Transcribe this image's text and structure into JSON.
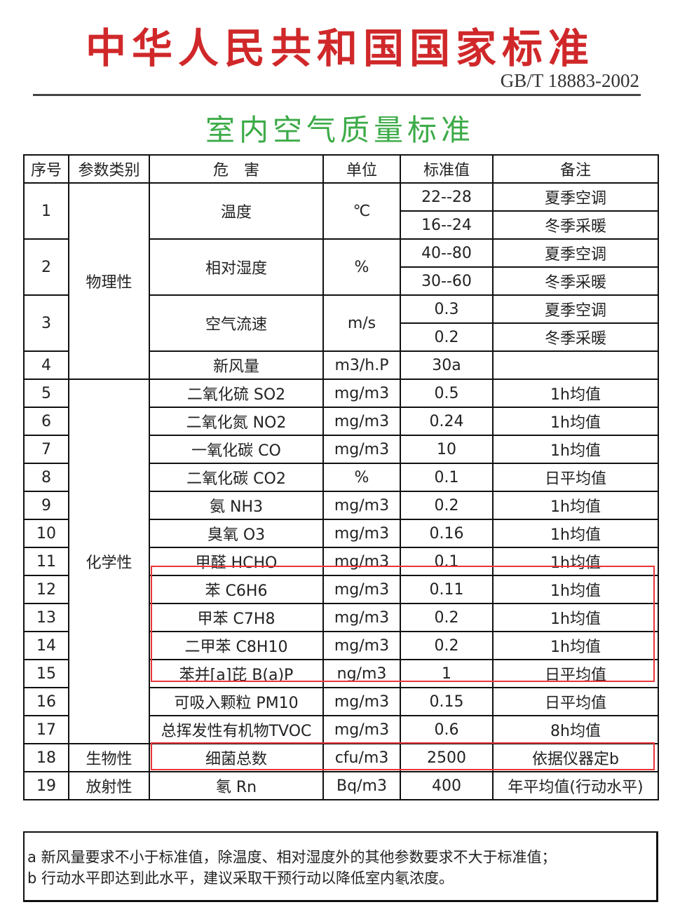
{
  "header": {
    "title": "中华人民共和国国家标准",
    "code": "GB/T 18883-2002",
    "subtitle": "室内空气质量标准"
  },
  "table": {
    "columns": [
      "序号",
      "参数类别",
      "危　害",
      "单位",
      "标准值",
      "备注"
    ],
    "categories": [
      {
        "label": "物理性",
        "from": 1,
        "to": 4
      },
      {
        "label": "化学性",
        "from": 5,
        "to": 17
      },
      {
        "label": "生物性",
        "from": 18,
        "to": 18
      },
      {
        "label": "放射性",
        "from": 19,
        "to": 19
      }
    ],
    "rows": [
      {
        "no": "1",
        "param": "温度",
        "unit": "℃",
        "values": [
          [
            "22--28",
            "夏季空调"
          ],
          [
            "16--24",
            "冬季采暖"
          ]
        ]
      },
      {
        "no": "2",
        "param": "相对湿度",
        "unit": "%",
        "values": [
          [
            "40--80",
            "夏季空调"
          ],
          [
            "30--60",
            "冬季采暖"
          ]
        ]
      },
      {
        "no": "3",
        "param": "空气流速",
        "unit": "m/s",
        "values": [
          [
            "0.3",
            "夏季空调"
          ],
          [
            "0.2",
            "冬季采暖"
          ]
        ]
      },
      {
        "no": "4",
        "param": "新风量",
        "unit": "m3/h.P",
        "values": [
          [
            "30a",
            ""
          ]
        ]
      },
      {
        "no": "5",
        "param": "二氧化硫 SO2",
        "unit": "mg/m3",
        "values": [
          [
            "0.5",
            "1h均值"
          ]
        ]
      },
      {
        "no": "6",
        "param": "二氧化氮 NO2",
        "unit": "mg/m3",
        "values": [
          [
            "0.24",
            "1h均值"
          ]
        ]
      },
      {
        "no": "7",
        "param": "一氧化碳 CO",
        "unit": "mg/m3",
        "values": [
          [
            "10",
            "1h均值"
          ]
        ]
      },
      {
        "no": "8",
        "param": "二氧化碳 CO2",
        "unit": "%",
        "values": [
          [
            "0.1",
            "日平均值"
          ]
        ]
      },
      {
        "no": "9",
        "param": "氨 NH3",
        "unit": "mg/m3",
        "values": [
          [
            "0.2",
            "1h均值"
          ]
        ]
      },
      {
        "no": "10",
        "param": "臭氧 O3",
        "unit": "mg/m3",
        "values": [
          [
            "0.16",
            "1h均值"
          ]
        ]
      },
      {
        "no": "11",
        "param": "甲醛 HCHO",
        "unit": "mg/m3",
        "values": [
          [
            "0.1",
            "1h均值"
          ]
        ]
      },
      {
        "no": "12",
        "param": "苯 C6H6",
        "unit": "mg/m3",
        "values": [
          [
            "0.11",
            "1h均值"
          ]
        ]
      },
      {
        "no": "13",
        "param": "甲苯 C7H8",
        "unit": "mg/m3",
        "values": [
          [
            "0.2",
            "1h均值"
          ]
        ]
      },
      {
        "no": "14",
        "param": "二甲苯 C8H10",
        "unit": "mg/m3",
        "values": [
          [
            "0.2",
            "1h均值"
          ]
        ]
      },
      {
        "no": "15",
        "param": "苯并[a]芘 B(a)P",
        "unit": "ng/m3",
        "values": [
          [
            "1",
            "日平均值"
          ]
        ]
      },
      {
        "no": "16",
        "param": "可吸入颗粒 PM10",
        "unit": "mg/m3",
        "values": [
          [
            "0.15",
            "日平均值"
          ]
        ]
      },
      {
        "no": "17",
        "param": "总挥发性有机物TVOC",
        "unit": "mg/m3",
        "values": [
          [
            "0.6",
            "8h均值"
          ]
        ]
      },
      {
        "no": "18",
        "param": "细菌总数",
        "unit": "cfu/m3",
        "values": [
          [
            "2500",
            "依据仪器定b"
          ]
        ]
      },
      {
        "no": "19",
        "param": "氡 Rn",
        "unit": "Bq/m3",
        "values": [
          [
            "400",
            "年平均值(行动水平)"
          ]
        ]
      }
    ],
    "highlight_color": "#e8363a"
  },
  "notes": [
    "a 新风量要求不小于标准值，除温度、相对湿度外的其他参数要求不大于标准值；",
    "b 行动水平即达到此水平，建议采取干预行动以降低室内氡浓度。"
  ]
}
